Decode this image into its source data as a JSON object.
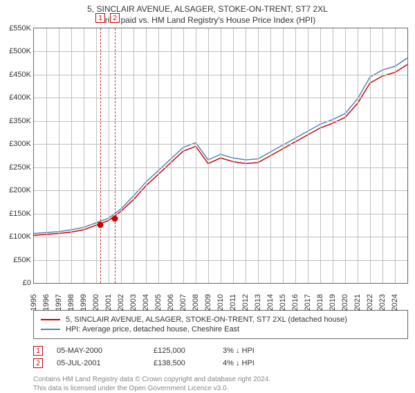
{
  "title": "5, SINCLAIR AVENUE, ALSAGER, STOKE-ON-TRENT, ST7 2XL",
  "subtitle": "Price paid vs. HM Land Registry's House Price Index (HPI)",
  "chart": {
    "type": "line",
    "background_color": "#ffffff",
    "border_color": "#666666",
    "grid_color": "#bfbfbf",
    "text_color": "#333333",
    "title_fontsize": 12,
    "label_fontsize": 11,
    "line_width": 1.5,
    "x_min": 1995,
    "x_max": 2025,
    "x_tick_step": 1,
    "x_ticks": [
      1995,
      1996,
      1997,
      1998,
      1999,
      2000,
      2001,
      2002,
      2003,
      2004,
      2005,
      2006,
      2007,
      2008,
      2009,
      2010,
      2011,
      2012,
      2013,
      2014,
      2015,
      2016,
      2017,
      2018,
      2019,
      2020,
      2021,
      2022,
      2023,
      2024
    ],
    "y_min": 0,
    "y_max": 550000,
    "y_tick_step": 50000,
    "y_ticks": [
      0,
      50000,
      100000,
      150000,
      200000,
      250000,
      300000,
      350000,
      400000,
      450000,
      500000,
      550000
    ],
    "y_tick_labels": [
      "£0",
      "£50K",
      "£100K",
      "£150K",
      "£200K",
      "£250K",
      "£300K",
      "£350K",
      "£400K",
      "£450K",
      "£500K",
      "£550K"
    ],
    "series": [
      {
        "name": "5, SINCLAIR AVENUE, ALSAGER, STOKE-ON-TRENT, ST7 2XL (detached house)",
        "color": "#cc0000",
        "values": {
          "1995": 103000,
          "1996": 105000,
          "1997": 107000,
          "1998": 110000,
          "1999": 115000,
          "2000": 125000,
          "2001": 135000,
          "2002": 155000,
          "2003": 180000,
          "2004": 210000,
          "2005": 235000,
          "2006": 260000,
          "2007": 285000,
          "2008": 295000,
          "2009": 258000,
          "2010": 270000,
          "2011": 262000,
          "2012": 258000,
          "2013": 260000,
          "2014": 275000,
          "2015": 290000,
          "2016": 305000,
          "2017": 320000,
          "2018": 335000,
          "2019": 345000,
          "2020": 358000,
          "2021": 388000,
          "2022": 432000,
          "2023": 447000,
          "2024": 455000,
          "2025": 472000
        }
      },
      {
        "name": "HPI: Average price, detached house, Cheshire East",
        "color": "#5b7fb2",
        "values": {
          "1995": 107000,
          "1996": 109000,
          "1997": 111000,
          "1998": 115000,
          "1999": 120000,
          "2000": 130000,
          "2001": 140000,
          "2002": 160000,
          "2003": 188000,
          "2004": 218000,
          "2005": 243000,
          "2006": 268000,
          "2007": 293000,
          "2008": 303000,
          "2009": 266000,
          "2010": 278000,
          "2011": 270000,
          "2012": 266000,
          "2013": 268000,
          "2014": 283000,
          "2015": 298000,
          "2016": 313000,
          "2017": 328000,
          "2018": 343000,
          "2019": 353000,
          "2020": 366000,
          "2021": 398000,
          "2022": 445000,
          "2023": 460000,
          "2024": 468000,
          "2025": 486000
        }
      }
    ],
    "markers": [
      {
        "label": "1",
        "x": 2000.34,
        "y": 125000,
        "color": "#cc0000",
        "box_border": "#cc0000",
        "box_text": "#cc0000"
      },
      {
        "label": "2",
        "x": 2001.51,
        "y": 138500,
        "color": "#cc0000",
        "box_border": "#cc0000",
        "box_text": "#cc0000"
      }
    ],
    "marker_radius": 4.5,
    "vline_color": "#cc3333"
  },
  "legend": {
    "border_color": "#666666",
    "items": [
      {
        "label": "5, SINCLAIR AVENUE, ALSAGER, STOKE-ON-TRENT, ST7 2XL (detached house)",
        "color": "#cc0000"
      },
      {
        "label": "HPI: Average price, detached house, Cheshire East",
        "color": "#5b7fb2"
      }
    ]
  },
  "transactions": [
    {
      "num": "1",
      "date": "05-MAY-2000",
      "price": "£125,000",
      "delta": "3% ↓ HPI"
    },
    {
      "num": "2",
      "date": "05-JUL-2001",
      "price": "£138,500",
      "delta": "4% ↓ HPI"
    }
  ],
  "footer_line1": "Contains HM Land Registry data © Crown copyright and database right 2024.",
  "footer_line2": "This data is licensed under the Open Government Licence v3.0."
}
